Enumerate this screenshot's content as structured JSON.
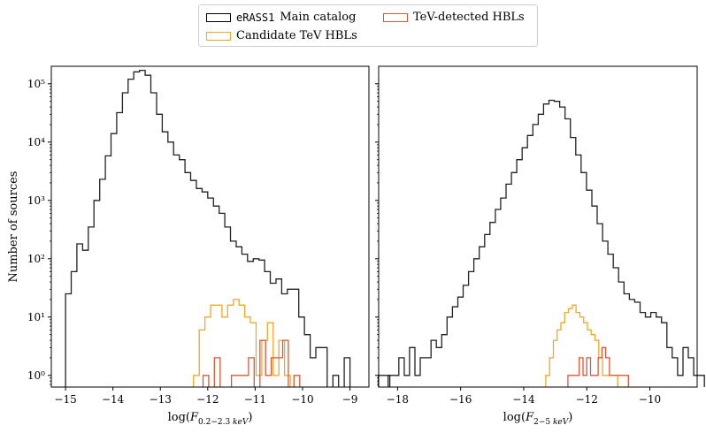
{
  "legend": {
    "entries": [
      {
        "code": "eRASS1",
        "label": "Main catalog",
        "color": "#222222"
      },
      {
        "code": "",
        "label": "Candidate TeV HBLs",
        "color": "#f5a623"
      },
      {
        "code": "",
        "label": "TeV-detected HBLs",
        "color": "#e05535"
      }
    ]
  },
  "chart_data": [
    {
      "type": "histogram",
      "panel": "left",
      "xlabel": "log(F_{0.2−2.3 keV})",
      "ylabel": "Number of sources",
      "xlim": [
        -15.3,
        -8.6
      ],
      "ylim_log10": [
        -0.2,
        5.3
      ],
      "xticks": [
        "−15",
        "−14",
        "−13",
        "−12",
        "−11",
        "−10",
        "−9"
      ],
      "xtick_values": [
        -15,
        -14,
        -13,
        -12,
        -11,
        -10,
        -9
      ],
      "yticks": [
        "10⁰",
        "10¹",
        "10²",
        "10³",
        "10⁴",
        "10⁵"
      ],
      "yscale": "log",
      "series": [
        {
          "name": "eRASS1 Main catalog",
          "color": "#222222",
          "bin_start": -15.0,
          "bin_width": 0.12,
          "counts": [
            25,
            60,
            180,
            140,
            350,
            1000,
            2300,
            5800,
            14000,
            32000,
            70000,
            120000,
            160000,
            170000,
            140000,
            70000,
            30000,
            15000,
            10000,
            6000,
            5000,
            3000,
            2200,
            1600,
            1400,
            1100,
            800,
            600,
            350,
            200,
            160,
            120,
            90,
            100,
            95,
            60,
            38,
            45,
            25,
            30,
            30,
            10,
            5,
            2,
            3,
            3,
            0,
            1,
            0,
            2,
            0,
            0,
            0,
            0,
            0,
            1,
            1
          ]
        },
        {
          "name": "Candidate TeV HBLs",
          "color": "#f5a623",
          "bin_start": -12.3,
          "bin_width": 0.12,
          "counts": [
            1,
            6,
            10,
            16,
            16,
            10,
            16,
            20,
            16,
            10,
            8,
            1,
            4,
            8,
            1,
            4,
            1
          ]
        },
        {
          "name": "TeV-detected HBLs",
          "color": "#e05535",
          "bin_start": -12.1,
          "bin_width": 0.12,
          "counts": [
            1,
            0,
            2,
            0,
            0,
            1,
            1,
            1,
            2,
            0,
            4,
            1,
            2,
            2,
            4,
            0,
            1
          ]
        }
      ]
    },
    {
      "type": "histogram",
      "panel": "right",
      "xlabel": "log(F_{2−5 keV})",
      "xlim": [
        -18.6,
        -8.5
      ],
      "ylim_log10": [
        -0.2,
        5.3
      ],
      "xticks": [
        "−18",
        "−16",
        "−14",
        "−12",
        "−10"
      ],
      "xtick_values": [
        -18,
        -16,
        -14,
        -12,
        -10
      ],
      "yscale": "log",
      "series": [
        {
          "name": "eRASS1 Main catalog",
          "color": "#222222",
          "bin_start": -18.3,
          "bin_width": 0.17,
          "counts": [
            1,
            1,
            2,
            1,
            3,
            1,
            2,
            2,
            4,
            3,
            5,
            10,
            15,
            22,
            35,
            60,
            100,
            160,
            260,
            420,
            700,
            1100,
            1900,
            3000,
            5000,
            8000,
            13000,
            20000,
            30000,
            45000,
            52000,
            50000,
            40000,
            25000,
            12000,
            6000,
            3000,
            1500,
            800,
            400,
            200,
            120,
            70,
            40,
            25,
            20,
            18,
            12,
            10,
            12,
            10,
            8,
            3,
            2,
            1,
            3,
            2,
            1,
            1
          ]
        },
        {
          "name": "Candidate TeV HBLs",
          "color": "#f5a623",
          "bin_start": -13.3,
          "bin_width": 0.12,
          "counts": [
            1,
            2,
            4,
            6,
            8,
            12,
            14,
            16,
            12,
            10,
            8,
            6,
            5,
            4,
            2,
            1,
            1,
            1,
            1
          ]
        },
        {
          "name": "TeV-detected HBLs",
          "color": "#e05535",
          "bin_start": -12.6,
          "bin_width": 0.12,
          "counts": [
            1,
            1,
            1,
            2,
            1,
            2,
            1,
            1,
            2,
            3,
            2,
            1,
            1,
            1,
            1,
            1
          ]
        }
      ]
    }
  ]
}
